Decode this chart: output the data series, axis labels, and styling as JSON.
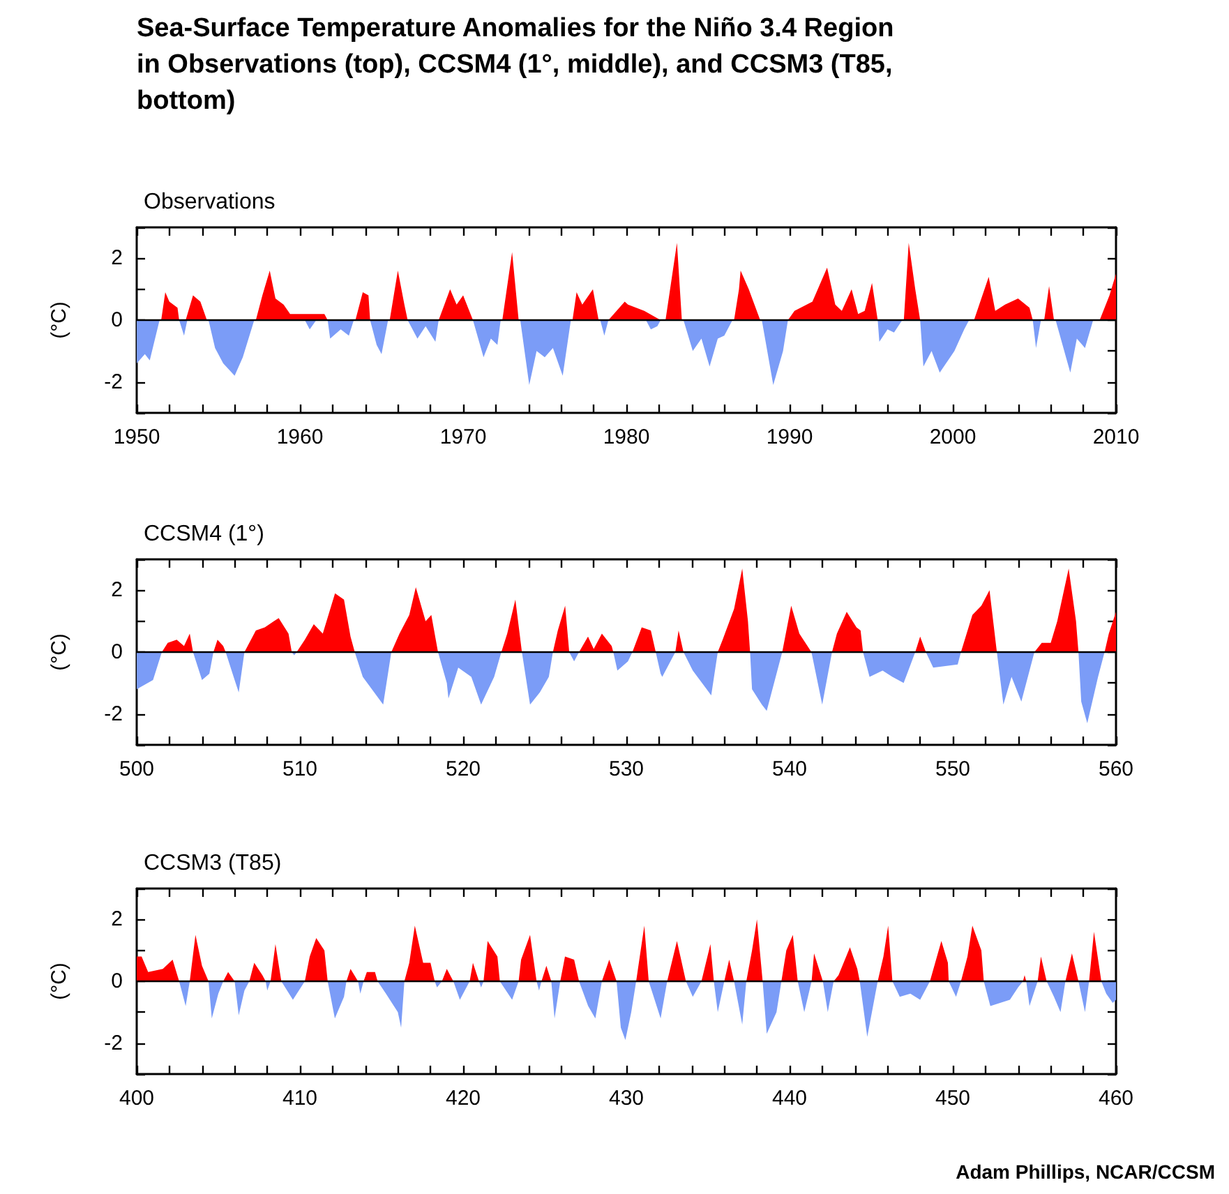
{
  "chart_data": [
    {
      "type": "area",
      "title": "Sea-Surface Temperature Anomalies for the Niño 3.4 Region in Observations (top), CCSM4 (1°, middle), and CCSM3 (T85, bottom)",
      "subtitle": "Observations",
      "ylabel": "(°C)",
      "xlim": [
        1950,
        2010
      ],
      "ylim": [
        -3,
        3
      ],
      "xticks": [
        1950,
        {
          "value": 1952,
          "label": null
        },
        {
          "value": 1954,
          "label": null
        },
        {
          "value": 1956,
          "label": null
        },
        {
          "value": 1958,
          "label": null
        },
        1960,
        {
          "value": 1962,
          "label": null
        },
        {
          "value": 1964,
          "label": null
        },
        {
          "value": 1966,
          "label": null
        },
        {
          "value": 1968,
          "label": null
        },
        1970,
        {
          "value": 1972,
          "label": null
        },
        {
          "value": 1974,
          "label": null
        },
        {
          "value": 1976,
          "label": null
        },
        {
          "value": 1978,
          "label": null
        },
        1980,
        {
          "value": 1982,
          "label": null
        },
        {
          "value": 1984,
          "label": null
        },
        {
          "value": 1986,
          "label": null
        },
        {
          "value": 1988,
          "label": null
        },
        1990,
        {
          "value": 1992,
          "label": null
        },
        {
          "value": 1994,
          "label": null
        },
        {
          "value": 1996,
          "label": null
        },
        {
          "value": 1998,
          "label": null
        },
        2000,
        {
          "value": 2002,
          "label": null
        },
        {
          "value": 2004,
          "label": null
        },
        {
          "value": 2006,
          "label": null
        },
        {
          "value": 2008,
          "label": null
        },
        2010
      ],
      "yticks": [
        {
          "value": -3,
          "label": null
        },
        -2,
        {
          "value": -1,
          "label": null
        },
        0,
        {
          "value": 1,
          "label": null
        },
        2,
        {
          "value": 3,
          "label": null
        }
      ],
      "ref_lines": [
        {
          "axis": "y",
          "value": 0,
          "color": "#000000"
        }
      ],
      "series": [
        {
          "color": "#ff0000",
          "x": [
            1951.5,
            1951.75,
            1952.0,
            1952.5,
            1952.6,
            1953.0,
            1953.45,
            1953.9,
            1954.3,
            1957.3,
            1957.7,
            1958.15,
            1958.5,
            1959.0,
            1959.4,
            1960.0,
            1960.5,
            1961.0,
            1961.5,
            1961.7,
            1963.4,
            1963.85,
            1964.2,
            1964.3,
            1965.5,
            1966.0,
            1966.4,
            1966.6,
            1968.5,
            1969.2,
            1969.6,
            1970.0,
            1970.6,
            1972.4,
            1973.0,
            1973.4,
            1976.7,
            1976.95,
            1977.3,
            1977.95,
            1978.3,
            1978.9,
            1979.4,
            1979.9,
            1980.1,
            1981.1,
            1982.1,
            1982.4,
            1983.1,
            1983.4,
            1986.6,
            1986.9,
            1987.0,
            1987.5,
            1988.2,
            1989.9,
            1990.3,
            1991.4,
            1992.3,
            1992.8,
            1993.2,
            1993.8,
            1994.2,
            1994.6,
            1995.05,
            1995.4,
            1997.0,
            1997.3,
            1997.7,
            1998.0,
            2001.3,
            2002.2,
            2002.6,
            2003.2,
            2004.0,
            2004.7,
            2004.9,
            2005.6,
            2005.9,
            2006.2,
            2009.0,
            2009.6,
            2010
          ],
          "values": [
            0,
            0.9,
            0.6,
            0.4,
            0,
            0,
            0.8,
            0.6,
            0,
            0,
            0.8,
            1.6,
            0.7,
            0.5,
            0.2,
            0.2,
            0.2,
            0.2,
            0.2,
            0,
            0,
            0.9,
            0.8,
            0,
            0,
            1.6,
            0.5,
            0,
            0,
            1.0,
            0.5,
            0.8,
            0,
            0,
            2.2,
            0,
            0,
            0.9,
            0.5,
            1.0,
            0,
            0,
            0.3,
            0.6,
            0.5,
            0.3,
            0,
            0,
            2.5,
            0,
            0,
            1.0,
            1.6,
            1.0,
            0,
            0,
            0.3,
            0.6,
            1.7,
            0.5,
            0.3,
            1.0,
            0.2,
            0.3,
            1.2,
            0,
            0,
            2.5,
            1.0,
            0,
            0,
            1.4,
            0.3,
            0.5,
            0.7,
            0.4,
            0,
            0,
            1.1,
            0,
            0,
            0.8,
            1.5
          ]
        },
        {
          "color": "#7b9cf7",
          "x": [
            1950,
            1950.5,
            1950.8,
            1951.4,
            1952.6,
            1952.9,
            1953.1,
            1954.4,
            1954.8,
            1955.3,
            1956.0,
            1956.5,
            1957.2,
            1960.3,
            1960.6,
            1961.0,
            1961.7,
            1961.85,
            1962.5,
            1963.0,
            1963.3,
            1964.3,
            1964.7,
            1965.0,
            1965.4,
            1966.6,
            1967.2,
            1967.7,
            1968.3,
            1968.5,
            1970.6,
            1971.25,
            1971.7,
            1972.1,
            1972.3,
            1973.5,
            1974.05,
            1974.5,
            1975.0,
            1975.5,
            1976.1,
            1976.6,
            1978.4,
            1978.65,
            1978.9,
            1981.2,
            1981.5,
            1981.9,
            1982.1,
            1983.5,
            1984.07,
            1984.6,
            1985.1,
            1985.6,
            1986.0,
            1986.5,
            1988.3,
            1989.0,
            1989.6,
            1989.9,
            1995.4,
            1995.5,
            1996.0,
            1996.4,
            1996.9,
            1998.0,
            1998.2,
            1998.7,
            1999.2,
            2000.1,
            2000.7,
            2001.0,
            2004.9,
            2005.1,
            2005.4,
            2006.3,
            2007.2,
            2007.6,
            2008.1,
            2008.6
          ],
          "values": [
            -1.4,
            -1.1,
            -1.3,
            0,
            0,
            -0.5,
            0,
            0,
            -0.9,
            -1.4,
            -1.8,
            -1.2,
            0,
            0,
            -0.3,
            0,
            0,
            -0.6,
            -0.3,
            -0.5,
            0,
            0,
            -0.8,
            -1.1,
            0,
            0,
            -0.6,
            -0.2,
            -0.7,
            0,
            0,
            -1.2,
            -0.6,
            -0.8,
            0,
            0,
            -2.1,
            -1.0,
            -1.2,
            -0.9,
            -1.8,
            0,
            0,
            -0.5,
            0,
            0,
            -0.3,
            -0.2,
            0,
            0,
            -1.0,
            -0.6,
            -1.5,
            -0.6,
            -0.5,
            0,
            0,
            -2.1,
            -1.0,
            0,
            0,
            -0.7,
            -0.3,
            -0.4,
            0,
            0,
            -1.5,
            -1.0,
            -1.7,
            -1.0,
            -0.3,
            0,
            0,
            -0.9,
            0,
            0,
            -1.7,
            -0.6,
            -0.9,
            0
          ]
        }
      ]
    },
    {
      "type": "area",
      "subtitle": "CCSM4 (1°)",
      "ylabel": "(°C)",
      "xlim": [
        500,
        560
      ],
      "ylim": [
        -3,
        3
      ],
      "xticks": [
        500,
        {
          "value": 502,
          "label": null
        },
        {
          "value": 504,
          "label": null
        },
        {
          "value": 506,
          "label": null
        },
        {
          "value": 508,
          "label": null
        },
        510,
        {
          "value": 512,
          "label": null
        },
        {
          "value": 514,
          "label": null
        },
        {
          "value": 516,
          "label": null
        },
        {
          "value": 518,
          "label": null
        },
        520,
        {
          "value": 522,
          "label": null
        },
        {
          "value": 524,
          "label": null
        },
        {
          "value": 526,
          "label": null
        },
        {
          "value": 528,
          "label": null
        },
        530,
        {
          "value": 532,
          "label": null
        },
        {
          "value": 534,
          "label": null
        },
        {
          "value": 536,
          "label": null
        },
        {
          "value": 538,
          "label": null
        },
        540,
        {
          "value": 542,
          "label": null
        },
        {
          "value": 544,
          "label": null
        },
        {
          "value": 546,
          "label": null
        },
        {
          "value": 548,
          "label": null
        },
        550,
        {
          "value": 552,
          "label": null
        },
        {
          "value": 554,
          "label": null
        },
        {
          "value": 556,
          "label": null
        },
        {
          "value": 558,
          "label": null
        },
        560
      ],
      "yticks": [
        {
          "value": -3,
          "label": null
        },
        -2,
        {
          "value": -1,
          "label": null
        },
        0,
        {
          "value": 1,
          "label": null
        },
        2,
        {
          "value": 3,
          "label": null
        }
      ],
      "ref_lines": [
        {
          "axis": "y",
          "value": 0,
          "color": "#000000"
        }
      ],
      "series": [
        {
          "color": "#ff0000",
          "x": [
            501.54,
            501.9,
            502.45,
            502.9,
            503.25,
            503.45,
            504.7,
            504.95,
            505.3,
            505.45,
            506.6,
            507.3,
            507.85,
            508.4,
            508.7,
            509.3,
            509.5,
            509.8,
            510.3,
            510.85,
            511.4,
            512.15,
            512.7,
            513.1,
            513.36,
            515.6,
            516.1,
            516.7,
            517.1,
            517.7,
            518.05,
            518.46,
            522.34,
            522.7,
            523.2,
            523.6,
            525.5,
            525.8,
            526.25,
            526.5,
            527.1,
            527.65,
            528.0,
            528.5,
            529.1,
            529.2,
            530.37,
            530.94,
            531.5,
            531.8,
            533.0,
            533.2,
            533.5,
            535.6,
            535.9,
            536.6,
            537.1,
            537.45,
            537.58,
            539.55,
            540.1,
            540.6,
            541.34,
            542.6,
            542.9,
            543.5,
            544.1,
            544.35,
            544.5,
            547.7,
            548.0,
            548.35,
            550.5,
            551.2,
            551.75,
            552.25,
            552.7,
            555.0,
            555.45,
            556.0,
            556.4,
            557.1,
            557.55,
            557.7,
            559.3,
            559.56,
            560
          ],
          "values": [
            0,
            0.3,
            0.4,
            0.2,
            0.6,
            0,
            0,
            0.4,
            0.2,
            0,
            0,
            0.7,
            0.8,
            1.0,
            1.1,
            0.6,
            0,
            0,
            0.4,
            0.9,
            0.6,
            1.9,
            1.7,
            0.5,
            0,
            0,
            0.6,
            1.2,
            2.1,
            1.0,
            1.2,
            0,
            0,
            0.6,
            1.7,
            0,
            0,
            0.7,
            1.5,
            0,
            0,
            0.5,
            0.1,
            0.6,
            0.2,
            0,
            0,
            0.8,
            0.7,
            0,
            0,
            0.7,
            0,
            0,
            0.4,
            1.4,
            2.7,
            1.0,
            0,
            0,
            1.5,
            0.6,
            0,
            0,
            0.6,
            1.3,
            0.8,
            0.7,
            0,
            0,
            0.5,
            0,
            0,
            1.2,
            1.5,
            2.0,
            0,
            0,
            0.3,
            0.3,
            1.0,
            2.7,
            1.0,
            0,
            0,
            0.6,
            1.3
          ]
        },
        {
          "color": "#7b9cf7",
          "x": [
            500,
            501.0,
            501.54,
            503.45,
            504.0,
            504.45,
            504.7,
            505.45,
            506.0,
            506.25,
            506.6,
            509.5,
            509.65,
            509.8,
            513.36,
            513.85,
            514.55,
            515.1,
            515.6,
            518.46,
            519.0,
            519.1,
            519.7,
            520.5,
            521.1,
            521.9,
            522.34,
            523.6,
            524.1,
            524.7,
            525.25,
            525.5,
            526.5,
            526.8,
            527.1,
            529.2,
            529.45,
            530.1,
            530.37,
            531.8,
            532.1,
            532.2,
            533.0,
            533.5,
            534.07,
            535.2,
            535.6,
            537.58,
            537.7,
            538.3,
            538.6,
            539.55,
            541.34,
            542.0,
            542.6,
            544.5,
            544.9,
            545.7,
            546.3,
            546.99,
            547.7,
            548.35,
            548.8,
            550.3,
            550.5,
            552.7,
            553.1,
            553.6,
            554.2,
            555.0,
            557.7,
            557.87,
            558.24,
            558.9,
            559.3
          ],
          "values": [
            -1.2,
            -0.9,
            0,
            0,
            -0.9,
            -0.7,
            0,
            0,
            -0.9,
            -1.3,
            0,
            0,
            -0.1,
            0,
            0,
            -0.8,
            -1.3,
            -1.7,
            0,
            0,
            -1.0,
            -1.5,
            -0.5,
            -0.8,
            -1.7,
            -0.8,
            0,
            0,
            -1.7,
            -1.3,
            -0.8,
            0,
            0,
            -0.3,
            0,
            0,
            -0.6,
            -0.3,
            0,
            0,
            -0.7,
            -0.8,
            0,
            0,
            -0.6,
            -1.4,
            0,
            0,
            -1.2,
            -1.7,
            -1.9,
            0,
            0,
            -1.7,
            0,
            0,
            -0.8,
            -0.6,
            -0.8,
            -1.0,
            0,
            0,
            -0.5,
            -0.4,
            0,
            0,
            -1.7,
            -0.8,
            -1.6,
            0,
            0,
            -1.6,
            -2.3,
            -0.8,
            0
          ]
        }
      ]
    },
    {
      "type": "area",
      "subtitle": "CCSM3 (T85)",
      "ylabel": "(°C)",
      "annotations": [
        "Adam Phillips, NCAR/CCSM"
      ],
      "xlim": [
        400,
        460
      ],
      "ylim": [
        -3,
        3
      ],
      "xticks": [
        400,
        {
          "value": 402,
          "label": null
        },
        {
          "value": 404,
          "label": null
        },
        {
          "value": 406,
          "label": null
        },
        {
          "value": 408,
          "label": null
        },
        410,
        {
          "value": 412,
          "label": null
        },
        {
          "value": 414,
          "label": null
        },
        {
          "value": 416,
          "label": null
        },
        {
          "value": 418,
          "label": null
        },
        420,
        {
          "value": 422,
          "label": null
        },
        {
          "value": 424,
          "label": null
        },
        {
          "value": 426,
          "label": null
        },
        {
          "value": 428,
          "label": null
        },
        430,
        {
          "value": 432,
          "label": null
        },
        {
          "value": 434,
          "label": null
        },
        {
          "value": 436,
          "label": null
        },
        {
          "value": 438,
          "label": null
        },
        440,
        {
          "value": 442,
          "label": null
        },
        {
          "value": 444,
          "label": null
        },
        {
          "value": 446,
          "label": null
        },
        {
          "value": 448,
          "label": null
        },
        450,
        {
          "value": 452,
          "label": null
        },
        {
          "value": 454,
          "label": null
        },
        {
          "value": 456,
          "label": null
        },
        {
          "value": 458,
          "label": null
        },
        460
      ],
      "yticks": [
        {
          "value": -3,
          "label": null
        },
        -2,
        {
          "value": -1,
          "label": null
        },
        0,
        {
          "value": 1,
          "label": null
        },
        2,
        {
          "value": 3,
          "label": null
        }
      ],
      "ref_lines": [
        {
          "axis": "y",
          "value": 0,
          "color": "#000000"
        }
      ],
      "series": [
        {
          "color": "#ff0000",
          "x": [
            400,
            400.3,
            400.7,
            401.6,
            402.2,
            402.6,
            403.25,
            403.6,
            404.0,
            404.4,
            405.3,
            405.6,
            406.0,
            406.9,
            407.2,
            407.7,
            407.9,
            408.2,
            408.5,
            408.86,
            410.3,
            410.6,
            411.0,
            411.5,
            411.7,
            412.85,
            413.1,
            413.56,
            413.9,
            414.1,
            414.6,
            414.76,
            416.4,
            416.7,
            417.04,
            417.55,
            418.0,
            418.26,
            418.7,
            419.0,
            419.4,
            420.4,
            420.6,
            420.97,
            421.25,
            421.5,
            422.1,
            422.25,
            423.4,
            423.55,
            424.1,
            424.5,
            424.8,
            425.1,
            425.4,
            425.95,
            426.24,
            426.8,
            427.1,
            428.5,
            428.95,
            429.4,
            430.6,
            431.1,
            431.37,
            432.5,
            433.1,
            433.65,
            434.6,
            435.15,
            435.36,
            436.0,
            436.3,
            436.6,
            437.35,
            437.7,
            438.0,
            438.35,
            439.5,
            439.8,
            440.2,
            440.5,
            441.35,
            441.5,
            442.04,
            442.7,
            443.0,
            443.7,
            444.15,
            444.3,
            445.4,
            445.75,
            446.04,
            446.3,
            448.6,
            449.3,
            449.7,
            449.75,
            450.5,
            450.9,
            451.2,
            451.75,
            451.9,
            454.3,
            454.4,
            454.5,
            455.2,
            455.4,
            455.75,
            456.9,
            457.3,
            457.7,
            458.35,
            458.65,
            459.1
          ],
          "values": [
            0.8,
            0.8,
            0.3,
            0.4,
            0.7,
            0,
            0,
            1.5,
            0.5,
            0,
            0,
            0.3,
            0,
            0,
            0.6,
            0.2,
            0,
            0,
            1.2,
            0,
            0,
            0.8,
            1.4,
            1.0,
            0,
            0,
            0.4,
            0,
            0,
            0.3,
            0.3,
            0,
            0,
            0.6,
            1.8,
            0.6,
            0.6,
            0,
            0,
            0.4,
            0,
            0,
            0.6,
            0,
            0,
            1.3,
            0.8,
            0,
            0,
            0.7,
            1.5,
            0,
            0,
            0.5,
            0,
            0,
            0.8,
            0.7,
            0,
            0,
            0.7,
            0,
            0,
            1.8,
            0,
            0,
            1.3,
            0,
            0,
            1.2,
            0,
            0,
            0.7,
            0,
            0,
            1.0,
            2.0,
            0,
            0,
            1.0,
            1.5,
            0,
            0,
            0.9,
            0,
            0,
            0.2,
            1.1,
            0.4,
            0,
            0,
            0.8,
            1.8,
            0,
            0,
            1.3,
            0.6,
            0,
            0,
            0.8,
            1.8,
            1.0,
            0,
            0,
            0.2,
            0,
            0,
            0.8,
            0,
            0,
            0.9,
            0,
            0,
            1.6,
            0
          ]
        },
        {
          "color": "#7b9cf7",
          "x": [
            402.6,
            403.0,
            403.25,
            404.4,
            404.6,
            405.0,
            405.3,
            406.0,
            406.25,
            406.6,
            406.9,
            407.9,
            408.0,
            408.2,
            408.86,
            409.57,
            410.3,
            411.7,
            412.14,
            412.7,
            412.85,
            413.56,
            413.7,
            413.9,
            414.76,
            415.27,
            416.0,
            416.2,
            416.4,
            418.26,
            418.4,
            418.7,
            419.4,
            419.8,
            420.4,
            420.97,
            421.1,
            421.25,
            422.25,
            423.0,
            423.4,
            424.5,
            424.65,
            424.8,
            425.4,
            425.6,
            425.95,
            427.1,
            427.66,
            428.1,
            428.5,
            429.4,
            429.66,
            429.94,
            430.3,
            430.6,
            431.37,
            432.1,
            432.5,
            433.65,
            434.07,
            434.6,
            435.36,
            435.6,
            436.0,
            436.6,
            437.1,
            437.35,
            438.35,
            438.6,
            439.2,
            439.5,
            440.5,
            440.9,
            441.35,
            442.04,
            442.34,
            442.7,
            444.3,
            444.76,
            445.4,
            446.3,
            446.75,
            447.4,
            448.0,
            448.6,
            449.75,
            450.2,
            450.5,
            451.9,
            452.3,
            453.5,
            454.0,
            454.3,
            454.5,
            454.7,
            455.2,
            455.75,
            456.2,
            456.6,
            456.9,
            457.7,
            458.1,
            458.35,
            459.1,
            459.4,
            459.8,
            460
          ],
          "values": [
            0,
            -0.8,
            0,
            0,
            -1.2,
            -0.4,
            0,
            0,
            -1.1,
            -0.3,
            0,
            0,
            -0.3,
            0,
            0,
            -0.6,
            0,
            0,
            -1.2,
            -0.5,
            0,
            0,
            -0.4,
            0,
            0,
            -0.4,
            -1.0,
            -1.5,
            0,
            0,
            -0.2,
            0,
            0,
            -0.6,
            0,
            0,
            -0.2,
            0,
            0,
            -0.6,
            0,
            0,
            -0.3,
            0,
            0,
            -1.2,
            0,
            0,
            -0.8,
            -1.2,
            0,
            0,
            -1.5,
            -1.9,
            -1.0,
            0,
            0,
            -1.2,
            0,
            0,
            -0.5,
            0,
            0,
            -1.0,
            0,
            0,
            -1.4,
            0,
            0,
            -1.7,
            -1.0,
            0,
            0,
            -1.0,
            0,
            0,
            -1.0,
            0,
            0,
            -1.8,
            0,
            0,
            -0.5,
            -0.4,
            -0.6,
            0,
            0,
            -0.5,
            0,
            0,
            -0.8,
            -0.6,
            -0.2,
            0,
            0,
            -0.8,
            0,
            0,
            -0.5,
            -1.0,
            0,
            0,
            -1.0,
            0,
            0,
            -0.4,
            -0.7,
            -0.6
          ]
        }
      ]
    }
  ]
}
